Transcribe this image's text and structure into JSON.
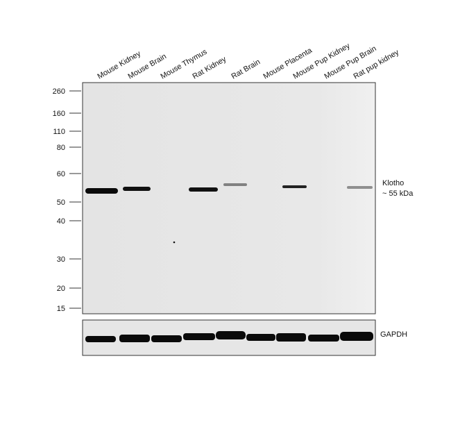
{
  "lanes": [
    "Mouse Kidney",
    "Mouse Brain",
    "Mouse Thymus",
    "Rat Kidney",
    "Rat Brain",
    "Mouse Placenta",
    "Mouse Pup Kidney",
    "Mouse Pup Brain",
    "Rat pup kidney"
  ],
  "markers": [
    "260",
    "160",
    "110",
    "80",
    "60",
    "50",
    "40",
    "30",
    "20",
    "15"
  ],
  "target": {
    "name": "Klotho",
    "size": "~ 55 kDa"
  },
  "loading_control": "GAPDH"
}
